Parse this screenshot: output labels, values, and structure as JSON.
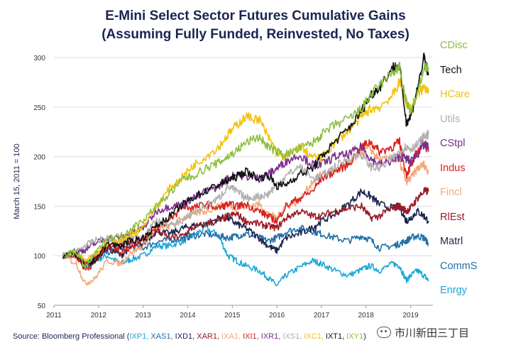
{
  "chart_data": {
    "type": "line",
    "title": "E-Mini Select Sector Futures Cumulative Gains",
    "subtitle": "(Assuming Fully Funded, Reinvested, No Taxes)",
    "xlabel": "",
    "ylabel": "March 15, 2011 = 100",
    "xlim": [
      2011.0,
      2019.5
    ],
    "ylim": [
      50,
      300
    ],
    "x_ticks": [
      2011,
      2012,
      2013,
      2014,
      2015,
      2016,
      2017,
      2018,
      2019
    ],
    "x_tick_labels": [
      "2011",
      "2012",
      "2013",
      "2014",
      "2015",
      "2016",
      "2017",
      "2018",
      "2019"
    ],
    "y_ticks": [
      50,
      100,
      150,
      200,
      250,
      300
    ],
    "y_tick_labels": [
      "50",
      "100",
      "150",
      "200",
      "250",
      "300"
    ],
    "grid": "horizontal",
    "legend_position": "right",
    "series": [
      {
        "name": "CDisc",
        "color": "#8cbf3f",
        "x": [
          2011.2,
          2011.5,
          2011.7,
          2011.9,
          2012.2,
          2012.5,
          2012.7,
          2013.0,
          2013.3,
          2013.6,
          2013.9,
          2014.1,
          2014.4,
          2014.7,
          2014.9,
          2015.1,
          2015.3,
          2015.6,
          2015.8,
          2016.0,
          2016.2,
          2016.5,
          2016.8,
          2017.0,
          2017.3,
          2017.6,
          2017.9,
          2018.1,
          2018.3,
          2018.6,
          2018.75,
          2018.9,
          2019.0,
          2019.15,
          2019.3,
          2019.4
        ],
        "values": [
          100,
          104,
          88,
          100,
          118,
          120,
          126,
          136,
          150,
          163,
          178,
          180,
          188,
          194,
          200,
          206,
          214,
          220,
          210,
          205,
          202,
          208,
          214,
          222,
          232,
          238,
          248,
          262,
          272,
          285,
          290,
          255,
          245,
          262,
          290,
          290
        ]
      },
      {
        "name": "Tech",
        "color": "#111111",
        "x": [
          2011.2,
          2011.5,
          2011.7,
          2011.9,
          2012.2,
          2012.5,
          2012.7,
          2013.0,
          2013.3,
          2013.6,
          2013.9,
          2014.1,
          2014.4,
          2014.7,
          2014.9,
          2015.1,
          2015.3,
          2015.6,
          2015.8,
          2016.0,
          2016.2,
          2016.5,
          2016.8,
          2017.0,
          2017.3,
          2017.6,
          2017.9,
          2018.1,
          2018.3,
          2018.6,
          2018.75,
          2018.9,
          2019.0,
          2019.15,
          2019.3,
          2019.4
        ],
        "values": [
          100,
          102,
          88,
          95,
          112,
          110,
          115,
          118,
          130,
          140,
          152,
          158,
          165,
          172,
          176,
          180,
          185,
          178,
          182,
          170,
          172,
          182,
          188,
          200,
          215,
          228,
          246,
          262,
          270,
          290,
          292,
          235,
          240,
          268,
          300,
          282
        ]
      },
      {
        "name": "HCare",
        "color": "#f2c20b",
        "x": [
          2011.2,
          2011.5,
          2011.7,
          2011.9,
          2012.2,
          2012.5,
          2012.7,
          2013.0,
          2013.3,
          2013.6,
          2013.9,
          2014.1,
          2014.4,
          2014.7,
          2014.9,
          2015.1,
          2015.3,
          2015.6,
          2015.8,
          2016.0,
          2016.2,
          2016.5,
          2016.8,
          2017.0,
          2017.3,
          2017.6,
          2017.9,
          2018.1,
          2018.3,
          2018.6,
          2018.75,
          2018.9,
          2019.0,
          2019.15,
          2019.3,
          2019.4
        ],
        "values": [
          100,
          103,
          95,
          100,
          112,
          115,
          120,
          130,
          150,
          168,
          180,
          190,
          200,
          210,
          222,
          232,
          240,
          238,
          220,
          205,
          198,
          210,
          200,
          198,
          214,
          226,
          240,
          248,
          250,
          262,
          275,
          255,
          248,
          262,
          270,
          268
        ]
      },
      {
        "name": "Utils",
        "color": "#b0b0b0",
        "x": [
          2011.2,
          2011.5,
          2011.7,
          2011.9,
          2012.2,
          2012.5,
          2012.7,
          2013.0,
          2013.3,
          2013.6,
          2013.9,
          2014.1,
          2014.4,
          2014.7,
          2014.9,
          2015.1,
          2015.3,
          2015.6,
          2015.8,
          2016.0,
          2016.2,
          2016.5,
          2016.8,
          2017.0,
          2017.3,
          2017.6,
          2017.9,
          2018.1,
          2018.3,
          2018.6,
          2018.75,
          2018.9,
          2019.0,
          2019.15,
          2019.3,
          2019.4
        ],
        "values": [
          100,
          104,
          110,
          115,
          118,
          114,
          118,
          120,
          135,
          130,
          136,
          142,
          150,
          158,
          170,
          165,
          158,
          160,
          162,
          172,
          180,
          190,
          178,
          180,
          190,
          198,
          202,
          190,
          188,
          198,
          205,
          210,
          208,
          212,
          220,
          222
        ]
      },
      {
        "name": "CStpl",
        "color": "#7b2d8e",
        "x": [
          2011.2,
          2011.5,
          2011.7,
          2011.9,
          2012.2,
          2012.5,
          2012.7,
          2013.0,
          2013.3,
          2013.6,
          2013.9,
          2014.1,
          2014.4,
          2014.7,
          2014.9,
          2015.1,
          2015.3,
          2015.6,
          2015.8,
          2016.0,
          2016.2,
          2016.5,
          2016.8,
          2017.0,
          2017.3,
          2017.6,
          2017.9,
          2018.1,
          2018.3,
          2018.6,
          2018.75,
          2018.9,
          2019.0,
          2019.15,
          2019.3,
          2019.4
        ],
        "values": [
          100,
          104,
          106,
          112,
          118,
          118,
          122,
          128,
          145,
          150,
          152,
          158,
          165,
          170,
          178,
          182,
          180,
          178,
          182,
          188,
          195,
          202,
          192,
          192,
          200,
          202,
          210,
          198,
          192,
          196,
          200,
          198,
          195,
          202,
          212,
          210
        ]
      },
      {
        "name": "Indus",
        "color": "#d7201f",
        "x": [
          2011.2,
          2011.5,
          2011.7,
          2011.9,
          2012.2,
          2012.5,
          2012.7,
          2013.0,
          2013.3,
          2013.6,
          2013.9,
          2014.1,
          2014.4,
          2014.7,
          2014.9,
          2015.1,
          2015.3,
          2015.6,
          2015.8,
          2016.0,
          2016.2,
          2016.5,
          2016.8,
          2017.0,
          2017.3,
          2017.6,
          2017.9,
          2018.1,
          2018.3,
          2018.6,
          2018.75,
          2018.9,
          2019.0,
          2019.15,
          2019.3,
          2019.4
        ],
        "values": [
          100,
          100,
          86,
          92,
          110,
          104,
          108,
          118,
          130,
          135,
          150,
          148,
          152,
          148,
          152,
          150,
          152,
          145,
          140,
          135,
          150,
          158,
          165,
          178,
          185,
          192,
          210,
          215,
          205,
          210,
          215,
          182,
          190,
          205,
          215,
          205
        ]
      },
      {
        "name": "Fincl",
        "color": "#f2a87a",
        "x": [
          2011.2,
          2011.5,
          2011.7,
          2011.9,
          2012.2,
          2012.5,
          2012.7,
          2013.0,
          2013.3,
          2013.6,
          2013.9,
          2014.1,
          2014.4,
          2014.7,
          2014.9,
          2015.1,
          2015.3,
          2015.6,
          2015.8,
          2016.0,
          2016.2,
          2016.5,
          2016.8,
          2017.0,
          2017.3,
          2017.6,
          2017.9,
          2018.1,
          2018.3,
          2018.6,
          2018.75,
          2018.9,
          2019.0,
          2019.15,
          2019.3,
          2019.4
        ],
        "values": [
          100,
          92,
          72,
          76,
          95,
          92,
          102,
          110,
          128,
          130,
          138,
          142,
          145,
          150,
          152,
          148,
          150,
          152,
          142,
          138,
          150,
          155,
          175,
          182,
          185,
          192,
          205,
          208,
          196,
          198,
          195,
          175,
          178,
          188,
          192,
          184
        ]
      },
      {
        "name": "RlEst",
        "color": "#9b1b24",
        "x": [
          2011.2,
          2011.5,
          2011.7,
          2011.9,
          2012.2,
          2012.5,
          2012.7,
          2013.0,
          2013.3,
          2013.6,
          2013.9,
          2014.1,
          2014.4,
          2014.7,
          2014.9,
          2015.1,
          2015.3,
          2015.6,
          2015.8,
          2016.0,
          2016.2,
          2016.5,
          2016.8,
          2017.0,
          2017.3,
          2017.6,
          2017.9,
          2018.1,
          2018.3,
          2018.6,
          2018.75,
          2018.9,
          2019.0,
          2019.15,
          2019.3,
          2019.4
        ],
        "values": [
          100,
          100,
          92,
          98,
          108,
          110,
          114,
          116,
          125,
          118,
          120,
          128,
          132,
          135,
          140,
          142,
          135,
          132,
          130,
          128,
          138,
          145,
          140,
          140,
          145,
          148,
          150,
          138,
          140,
          148,
          150,
          145,
          148,
          158,
          165,
          165
        ]
      },
      {
        "name": "Matrl",
        "color": "#1a2550",
        "x": [
          2011.2,
          2011.5,
          2011.7,
          2011.9,
          2012.2,
          2012.5,
          2012.7,
          2013.0,
          2013.3,
          2013.6,
          2013.9,
          2014.1,
          2014.4,
          2014.7,
          2014.9,
          2015.1,
          2015.3,
          2015.6,
          2015.8,
          2016.0,
          2016.2,
          2016.5,
          2016.8,
          2017.0,
          2017.3,
          2017.6,
          2017.9,
          2018.1,
          2018.3,
          2018.6,
          2018.75,
          2018.9,
          2019.0,
          2019.15,
          2019.3,
          2019.4
        ],
        "values": [
          100,
          102,
          90,
          95,
          108,
          100,
          108,
          112,
          125,
          122,
          128,
          130,
          132,
          138,
          138,
          132,
          128,
          118,
          110,
          105,
          118,
          122,
          128,
          135,
          142,
          152,
          165,
          160,
          152,
          148,
          150,
          135,
          138,
          145,
          140,
          135
        ]
      },
      {
        "name": "CommS",
        "color": "#1f6fa8",
        "x": [
          2011.2,
          2011.5,
          2011.7,
          2011.9,
          2012.2,
          2012.5,
          2012.7,
          2013.0,
          2013.3,
          2013.6,
          2013.9,
          2014.1,
          2014.4,
          2014.7,
          2014.9,
          2015.1,
          2015.3,
          2015.6,
          2015.8,
          2016.0,
          2016.2,
          2016.5,
          2016.8,
          2017.0,
          2017.3,
          2017.6,
          2017.9,
          2018.1,
          2018.3,
          2018.6,
          2018.75,
          2018.9,
          2019.0,
          2019.15,
          2019.3,
          2019.4
        ],
        "values": [
          100,
          100,
          92,
          96,
          104,
          106,
          110,
          108,
          114,
          116,
          118,
          120,
          122,
          120,
          118,
          120,
          122,
          118,
          115,
          118,
          124,
          128,
          125,
          122,
          118,
          115,
          120,
          116,
          108,
          110,
          112,
          115,
          118,
          120,
          118,
          112
        ]
      },
      {
        "name": "Enrgy",
        "color": "#19a7d8",
        "x": [
          2011.2,
          2011.5,
          2011.7,
          2011.9,
          2012.2,
          2012.5,
          2012.7,
          2013.0,
          2013.3,
          2013.6,
          2013.9,
          2014.1,
          2014.4,
          2014.7,
          2014.9,
          2015.1,
          2015.3,
          2015.6,
          2015.8,
          2016.0,
          2016.2,
          2016.5,
          2016.8,
          2017.0,
          2017.3,
          2017.6,
          2017.9,
          2018.1,
          2018.3,
          2018.6,
          2018.75,
          2018.9,
          2019.0,
          2019.15,
          2019.3,
          2019.4
        ],
        "values": [
          100,
          106,
          88,
          95,
          100,
          92,
          96,
          100,
          110,
          110,
          115,
          120,
          128,
          120,
          100,
          95,
          90,
          85,
          78,
          70,
          80,
          88,
          95,
          92,
          85,
          80,
          86,
          90,
          85,
          92,
          90,
          75,
          80,
          85,
          80,
          75
        ]
      }
    ]
  },
  "source": {
    "prefix": "Source: Bloomberg Professional (",
    "suffix": ")",
    "tickers": [
      {
        "text": "IXP1,",
        "color": "#19a7d8"
      },
      {
        "text": "XAS1,",
        "color": "#1f6fa8"
      },
      {
        "text": "IXD1,",
        "color": "#1a2550"
      },
      {
        "text": "XAR1,",
        "color": "#9b1b24"
      },
      {
        "text": "IXA1,",
        "color": "#f2a87a"
      },
      {
        "text": "IXI1,",
        "color": "#d7201f"
      },
      {
        "text": "IXR1,",
        "color": "#7b2d8e"
      },
      {
        "text": "IXS1,",
        "color": "#b0b0b0"
      },
      {
        "text": "IXC1,",
        "color": "#f2c20b"
      },
      {
        "text": "IXT1,",
        "color": "#111111"
      },
      {
        "text": "IXY1",
        "color": "#8cbf3f"
      }
    ]
  },
  "watermark": {
    "text": "市川新田三丁目",
    "icon": "wechat-icon"
  }
}
